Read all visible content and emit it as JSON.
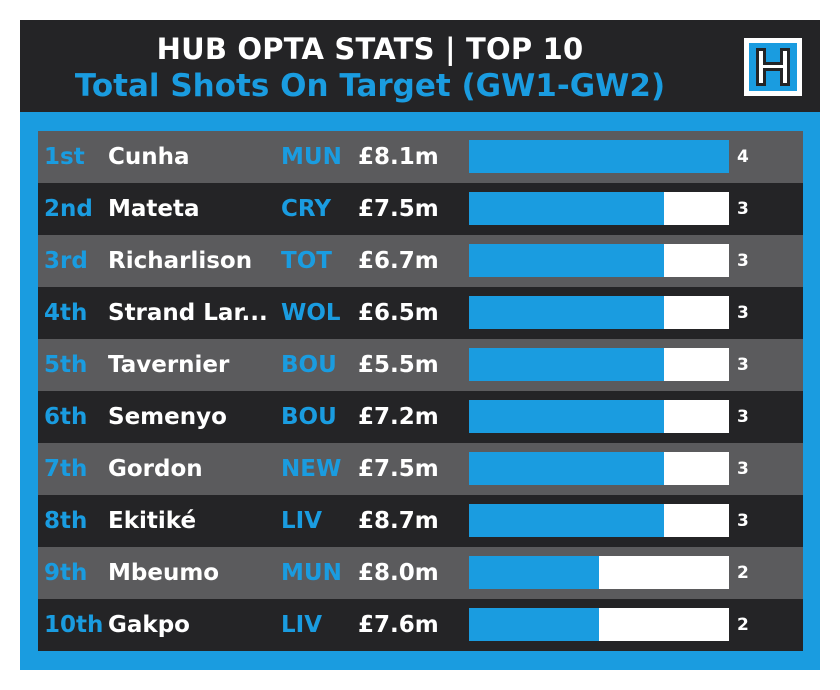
{
  "header": {
    "title": "HUB OPTA STATS | TOP 10",
    "subtitle": "Total Shots On Target (GW1-GW2)"
  },
  "logo": {
    "icon": "hub-logo-icon",
    "letter": "H"
  },
  "colors": {
    "accent": "#1a9ce0",
    "header_bg": "#242426",
    "row_light": "#5b5b5d",
    "row_dark": "#242426",
    "bar_track": "#ffffff"
  },
  "chart_data": {
    "type": "bar",
    "orientation": "horizontal",
    "title": "HUB OPTA STATS | TOP 10",
    "subtitle": "Total Shots On Target (GW1-GW2)",
    "xlim": [
      0,
      4
    ],
    "grid": false,
    "rows": [
      {
        "rank": "1st",
        "name": "Cunha",
        "team": "MUN",
        "price": "£8.1m",
        "value": 4
      },
      {
        "rank": "2nd",
        "name": "Mateta",
        "team": "CRY",
        "price": "£7.5m",
        "value": 3
      },
      {
        "rank": "3rd",
        "name": "Richarlison",
        "team": "TOT",
        "price": "£6.7m",
        "value": 3
      },
      {
        "rank": "4th",
        "name": "Strand Lar...",
        "team": "WOL",
        "price": "£6.5m",
        "value": 3
      },
      {
        "rank": "5th",
        "name": "Tavernier",
        "team": "BOU",
        "price": "£5.5m",
        "value": 3
      },
      {
        "rank": "6th",
        "name": "Semenyo",
        "team": "BOU",
        "price": "£7.2m",
        "value": 3
      },
      {
        "rank": "7th",
        "name": "Gordon",
        "team": "NEW",
        "price": "£7.5m",
        "value": 3
      },
      {
        "rank": "8th",
        "name": "Ekitiké",
        "team": "LIV",
        "price": "£8.7m",
        "value": 3
      },
      {
        "rank": "9th",
        "name": "Mbeumo",
        "team": "MUN",
        "price": "£8.0m",
        "value": 2
      },
      {
        "rank": "10th",
        "name": "Gakpo",
        "team": "LIV",
        "price": "£7.6m",
        "value": 2
      }
    ]
  }
}
